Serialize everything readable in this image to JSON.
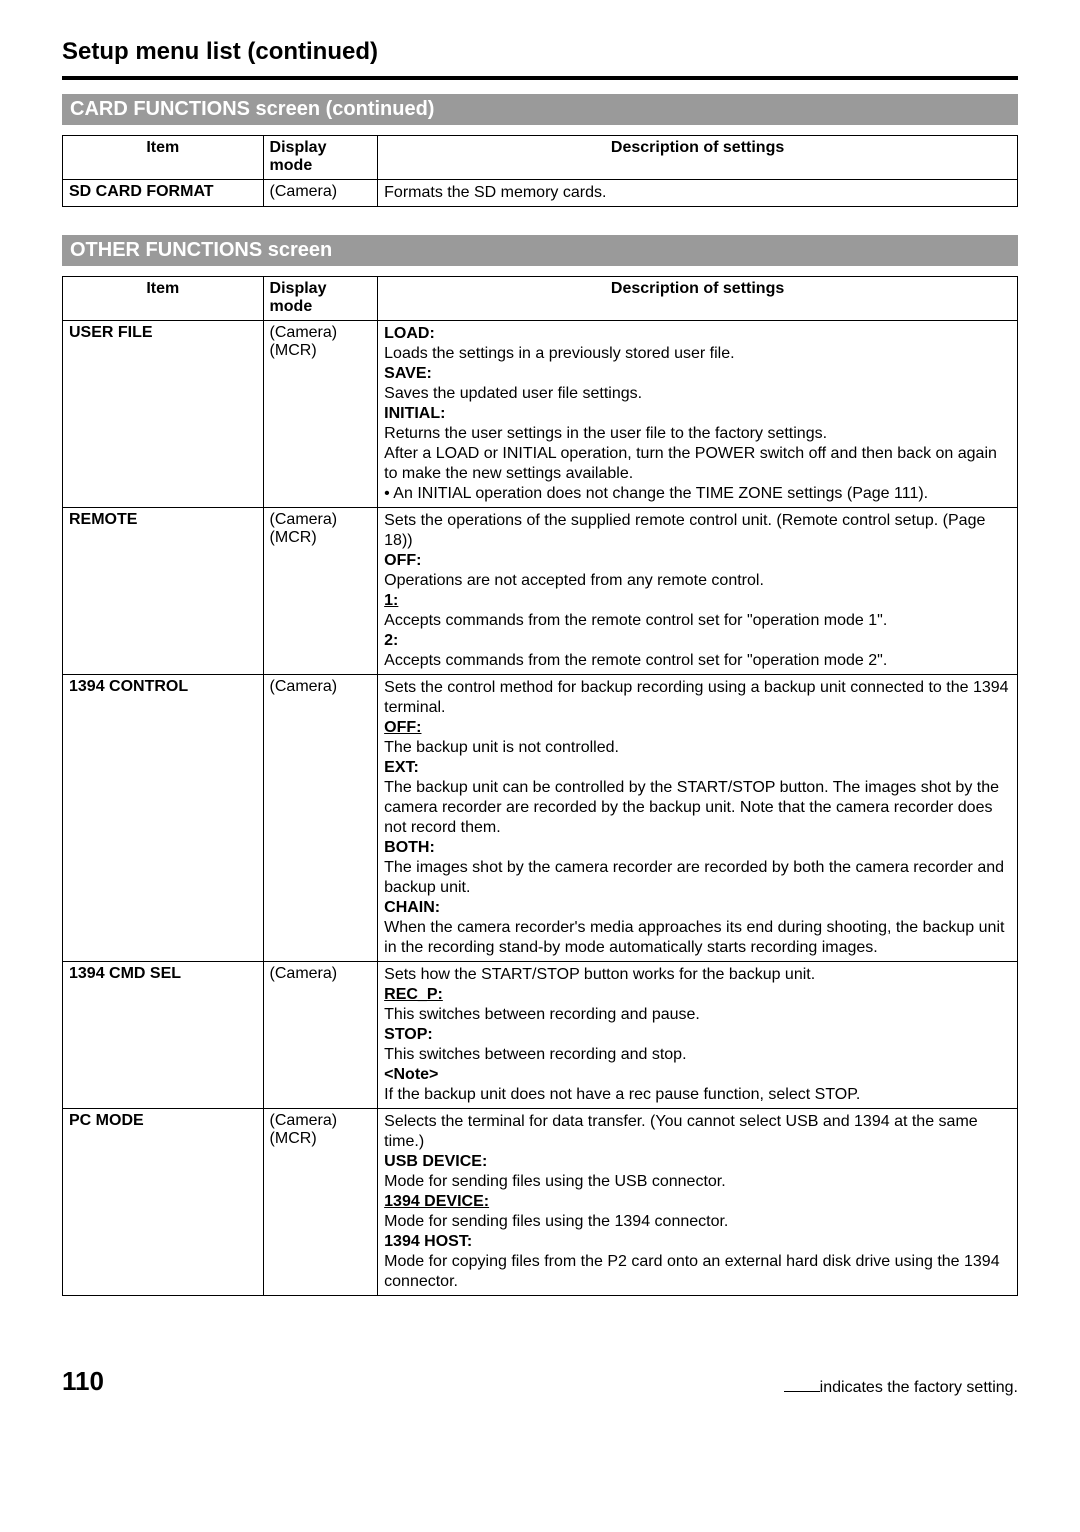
{
  "page_title": "Setup menu list (continued)",
  "section1": {
    "title": "CARD FUNCTIONS screen (continued)",
    "headers": {
      "item": "Item",
      "mode": "Display mode",
      "desc": "Description of settings"
    },
    "rows": [
      {
        "item": "SD CARD FORMAT",
        "mode": "(Camera)",
        "desc_plain": "Formats the SD memory cards."
      }
    ]
  },
  "section2": {
    "title": "OTHER FUNCTIONS screen",
    "headers": {
      "item": "Item",
      "mode": "Display mode",
      "desc": "Description of settings"
    },
    "rows": {
      "user_file": {
        "item": "USER FILE",
        "mode": "(Camera)\n(MCR)",
        "parts": {
          "lbl_load": "LOAD:",
          "txt_load": "Loads the settings in a previously stored user file.",
          "lbl_save": "SAVE:",
          "txt_save": "Saves the updated user file settings.",
          "lbl_initial": "INITIAL:",
          "txt_initial1": "Returns the user settings in the user file to the factory settings.",
          "txt_initial2": "After a LOAD or INITIAL operation, turn the POWER switch off and then back on again to make the new settings available.",
          "txt_initial3": "• An INITIAL operation does not change the TIME ZONE settings (Page 111)."
        }
      },
      "remote": {
        "item": "REMOTE",
        "mode": "(Camera)\n(MCR)",
        "parts": {
          "txt_intro": "Sets the operations of the supplied remote control unit. (Remote control setup. (Page 18))",
          "lbl_off": "OFF:",
          "txt_off": "Operations are not accepted from any remote control.",
          "lbl_1": "1:",
          "txt_1": "Accepts commands from the remote control set for \"operation mode 1\".",
          "lbl_2": "2:",
          "txt_2": "Accepts commands from the remote control set for \"operation mode 2\"."
        }
      },
      "ctrl1394": {
        "item": "1394 CONTROL",
        "mode": "(Camera)",
        "parts": {
          "txt_intro": "Sets the control method for backup recording using a backup unit connected to the 1394 terminal.",
          "lbl_off": "OFF:",
          "txt_off": "The backup unit is not controlled.",
          "lbl_ext": "EXT:",
          "txt_ext": "The backup unit can be controlled by the START/STOP button. The images shot by the camera recorder are recorded by the backup unit. Note that the camera recorder does not record them.",
          "lbl_both": "BOTH:",
          "txt_both": "The images shot by the camera recorder are recorded by both the camera recorder and backup unit.",
          "lbl_chain": "CHAIN:",
          "txt_chain": "When the camera recorder's media approaches its end during shooting, the backup unit in the recording stand-by mode automatically starts recording images."
        }
      },
      "cmd1394": {
        "item": "1394 CMD SEL",
        "mode": "(Camera)",
        "parts": {
          "txt_intro": "Sets how the START/STOP button works for the backup unit.",
          "lbl_recp": "REC_P:",
          "txt_recp": "This switches between recording and pause.",
          "lbl_stop": "STOP:",
          "txt_stop": "This switches between recording and stop.",
          "lbl_note": "<Note>",
          "txt_note": "If the backup unit does not have a rec pause function, select STOP."
        }
      },
      "pcmode": {
        "item": "PC MODE",
        "mode": "(Camera)\n(MCR)",
        "parts": {
          "txt_intro": "Selects the terminal for data transfer. (You cannot select USB and 1394 at the same time.)",
          "lbl_usb": "USB DEVICE:",
          "txt_usb": "Mode for sending files using the USB connector.",
          "lbl_1394d": "1394 DEVICE:",
          "txt_1394d": "Mode for sending files using the 1394 connector.",
          "lbl_1394h": "1394 HOST:",
          "txt_1394h": "Mode for copying files from the P2 card onto an external hard disk drive using the 1394 connector."
        }
      }
    }
  },
  "footer": {
    "page_number": "110",
    "factory_note": "indicates the factory setting."
  }
}
